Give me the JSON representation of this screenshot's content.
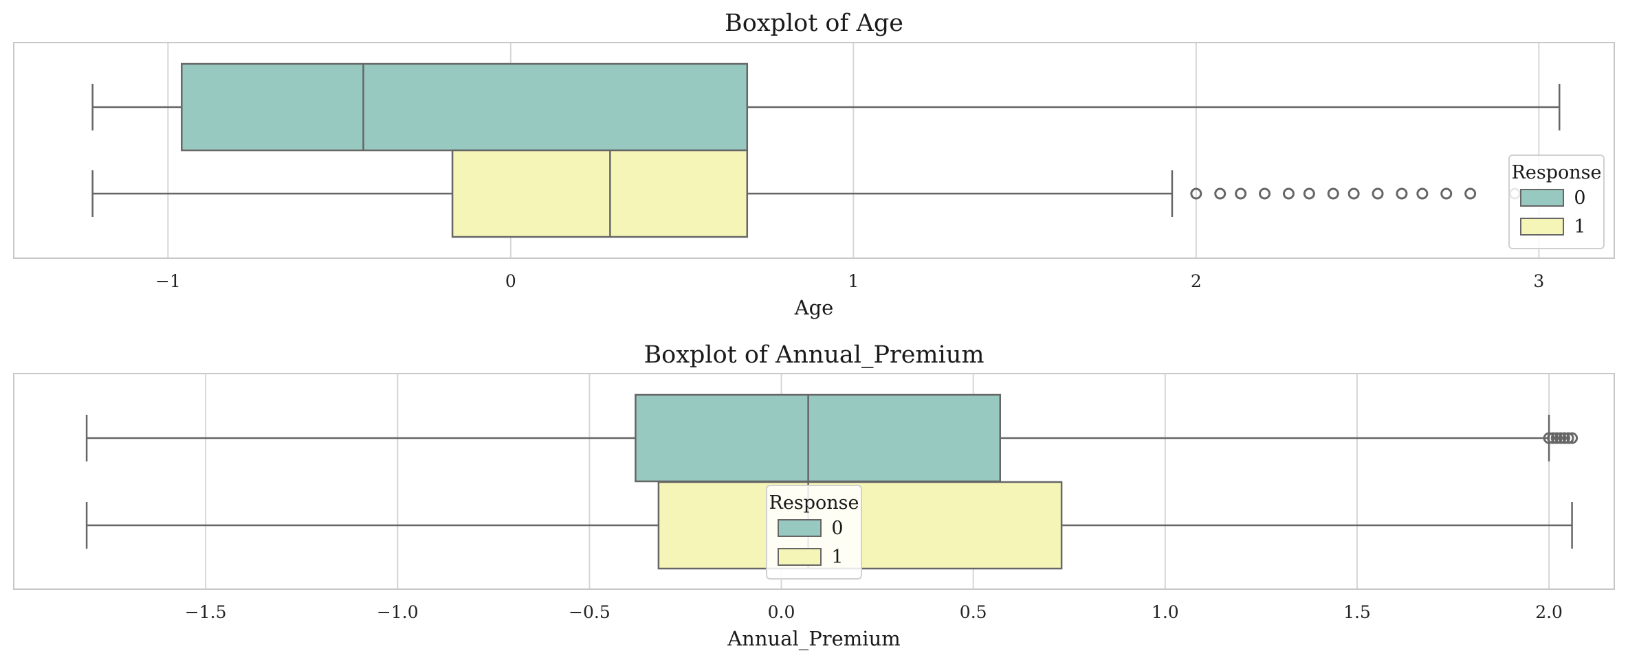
{
  "colors": {
    "response_0": "#98c9c1",
    "response_1": "#f5f5b8",
    "line": "#666666",
    "grid": "#d6d6d6",
    "frame": "#c8c8c8"
  },
  "chart_data": [
    {
      "type": "box",
      "orientation": "horizontal",
      "title": "Boxplot of Age",
      "xlabel": "Age",
      "xlim": [
        -1.45,
        3.22
      ],
      "xticks": [
        -1,
        0,
        1,
        2,
        3
      ],
      "xtick_labels": [
        "−1",
        "0",
        "1",
        "2",
        "3"
      ],
      "grid": true,
      "legend": {
        "title": "Response",
        "position": "lower-right",
        "entries": [
          "0",
          "1"
        ]
      },
      "series": [
        {
          "name": "0",
          "whisker_low": -1.22,
          "q1": -0.96,
          "median": -0.43,
          "q3": 0.69,
          "whisker_high": 3.06,
          "outliers": []
        },
        {
          "name": "1",
          "whisker_low": -1.22,
          "q1": -0.17,
          "median": 0.29,
          "q3": 0.69,
          "whisker_high": 1.93,
          "outliers": [
            2.0,
            2.07,
            2.13,
            2.2,
            2.27,
            2.33,
            2.4,
            2.46,
            2.53,
            2.6,
            2.66,
            2.73,
            2.8,
            2.93
          ]
        }
      ]
    },
    {
      "type": "box",
      "orientation": "horizontal",
      "title": "Boxplot of Annual_Premium",
      "xlabel": "Annual_Premium",
      "xlim": [
        -2.0,
        2.17
      ],
      "xticks": [
        -1.5,
        -1.0,
        -0.5,
        0.0,
        0.5,
        1.0,
        1.5,
        2.0
      ],
      "xtick_labels": [
        "−1.5",
        "−1.0",
        "−0.5",
        "0.0",
        "0.5",
        "1.0",
        "1.5",
        "2.0"
      ],
      "grid": true,
      "legend": {
        "title": "Response",
        "position": "lower-center",
        "entries": [
          "0",
          "1"
        ]
      },
      "series": [
        {
          "name": "0",
          "whisker_low": -1.81,
          "q1": -0.38,
          "median": 0.07,
          "q3": 0.57,
          "whisker_high": 2.0,
          "outliers": [
            2.0,
            2.01,
            2.02,
            2.03,
            2.04,
            2.05,
            2.06
          ]
        },
        {
          "name": "1",
          "whisker_low": -1.81,
          "q1": -0.32,
          "median": 0.07,
          "q3": 0.73,
          "whisker_high": 2.06,
          "outliers": []
        }
      ]
    }
  ]
}
